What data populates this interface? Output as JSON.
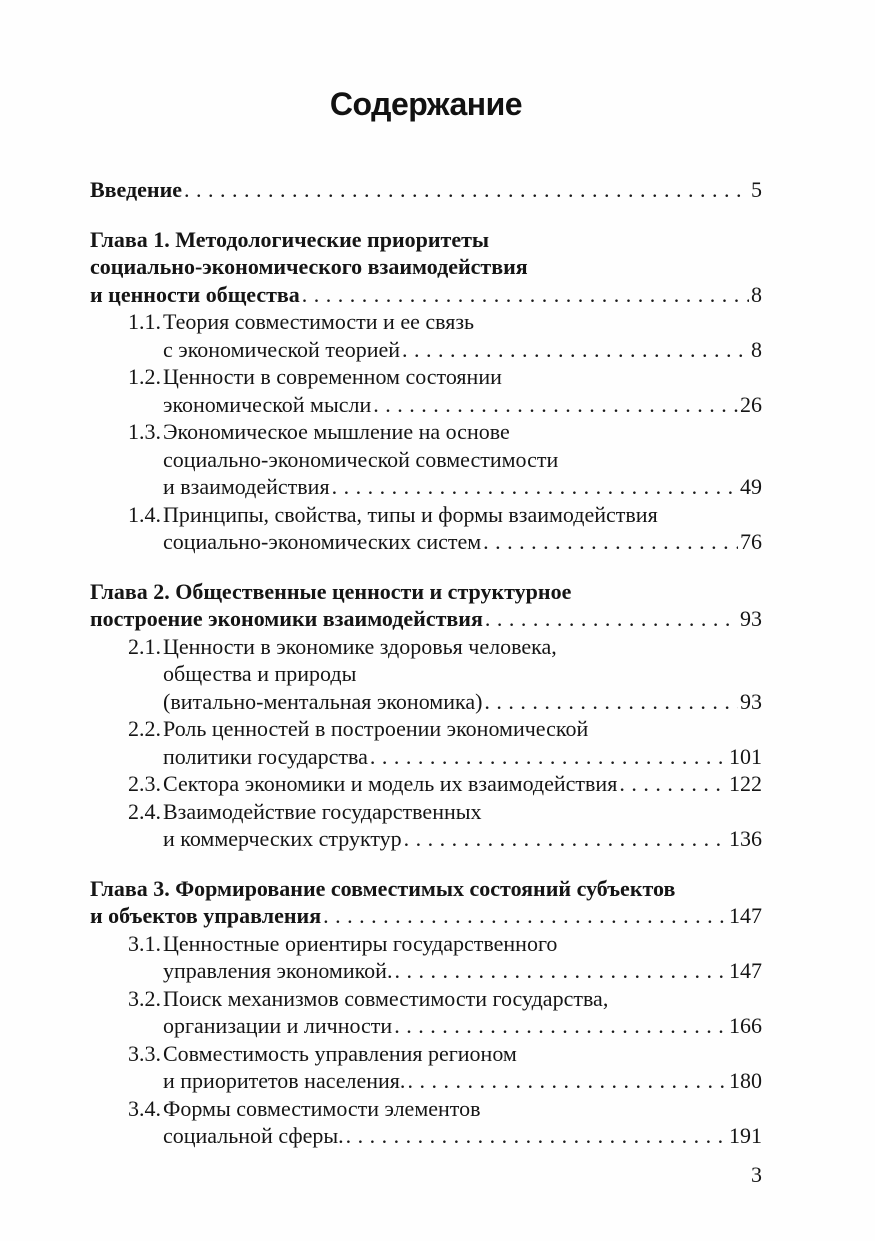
{
  "document": {
    "title": "Содержание",
    "page_number": "3"
  },
  "toc": {
    "entries": [
      {
        "kind": "intro",
        "num": "",
        "lines": [
          "Введение"
        ],
        "page": "5"
      },
      {
        "kind": "chapter",
        "num": "",
        "lines": [
          "Глава 1. Методологические приоритеты",
          "социально-экономического взаимодействия",
          "и ценности общества"
        ],
        "page": "8"
      },
      {
        "kind": "item",
        "num": "1.1.",
        "lines": [
          "Теория совместимости и ее связь",
          "с экономической теорией"
        ],
        "page": "8"
      },
      {
        "kind": "item",
        "num": "1.2.",
        "lines": [
          "Ценности в современном состоянии",
          "экономической мысли"
        ],
        "page": "26"
      },
      {
        "kind": "item",
        "num": "1.3.",
        "lines": [
          "Экономическое мышление на основе",
          "социально-экономической совместимости",
          "и взаимодействия"
        ],
        "page": "49"
      },
      {
        "kind": "item",
        "num": "1.4.",
        "lines": [
          "Принципы, свойства, типы и формы взаимодействия",
          "социально-экономических систем"
        ],
        "page": "76"
      },
      {
        "kind": "chapter",
        "num": "",
        "lines": [
          "Глава 2. Общественные ценности и структурное",
          "построение экономики взаимодействия"
        ],
        "page": "93"
      },
      {
        "kind": "item",
        "num": "2.1.",
        "lines": [
          "Ценности в экономике здоровья человека,",
          "общества и природы",
          "(витально-ментальная экономика)"
        ],
        "page": "93"
      },
      {
        "kind": "item",
        "num": "2.2.",
        "lines": [
          "Роль ценностей в построении экономической",
          "политики государства"
        ],
        "page": "101"
      },
      {
        "kind": "item",
        "num": "2.3.",
        "lines": [
          "Сектора экономики и модель их взаимодействия"
        ],
        "page": "122"
      },
      {
        "kind": "item",
        "num": "2.4.",
        "lines": [
          "Взаимодействие государственных",
          "и коммерческих структур"
        ],
        "page": "136"
      },
      {
        "kind": "chapter",
        "num": "",
        "lines": [
          "Глава 3. Формирование совместимых состояний субъектов",
          "и объектов управления"
        ],
        "page": "147"
      },
      {
        "kind": "item",
        "num": "3.1.",
        "lines": [
          "Ценностные ориентиры государственного",
          "управления экономикой."
        ],
        "page": "147"
      },
      {
        "kind": "item",
        "num": "3.2.",
        "lines": [
          "Поиск механизмов совместимости государства,",
          "организации и личности"
        ],
        "page": "166"
      },
      {
        "kind": "item",
        "num": "3.3.",
        "lines": [
          "Совместимость управления регионом",
          "и приоритетов населения."
        ],
        "page": "180"
      },
      {
        "kind": "item",
        "num": "3.4.",
        "lines": [
          "Формы совместимости элементов",
          "социальной сферы."
        ],
        "page": "191"
      }
    ]
  }
}
